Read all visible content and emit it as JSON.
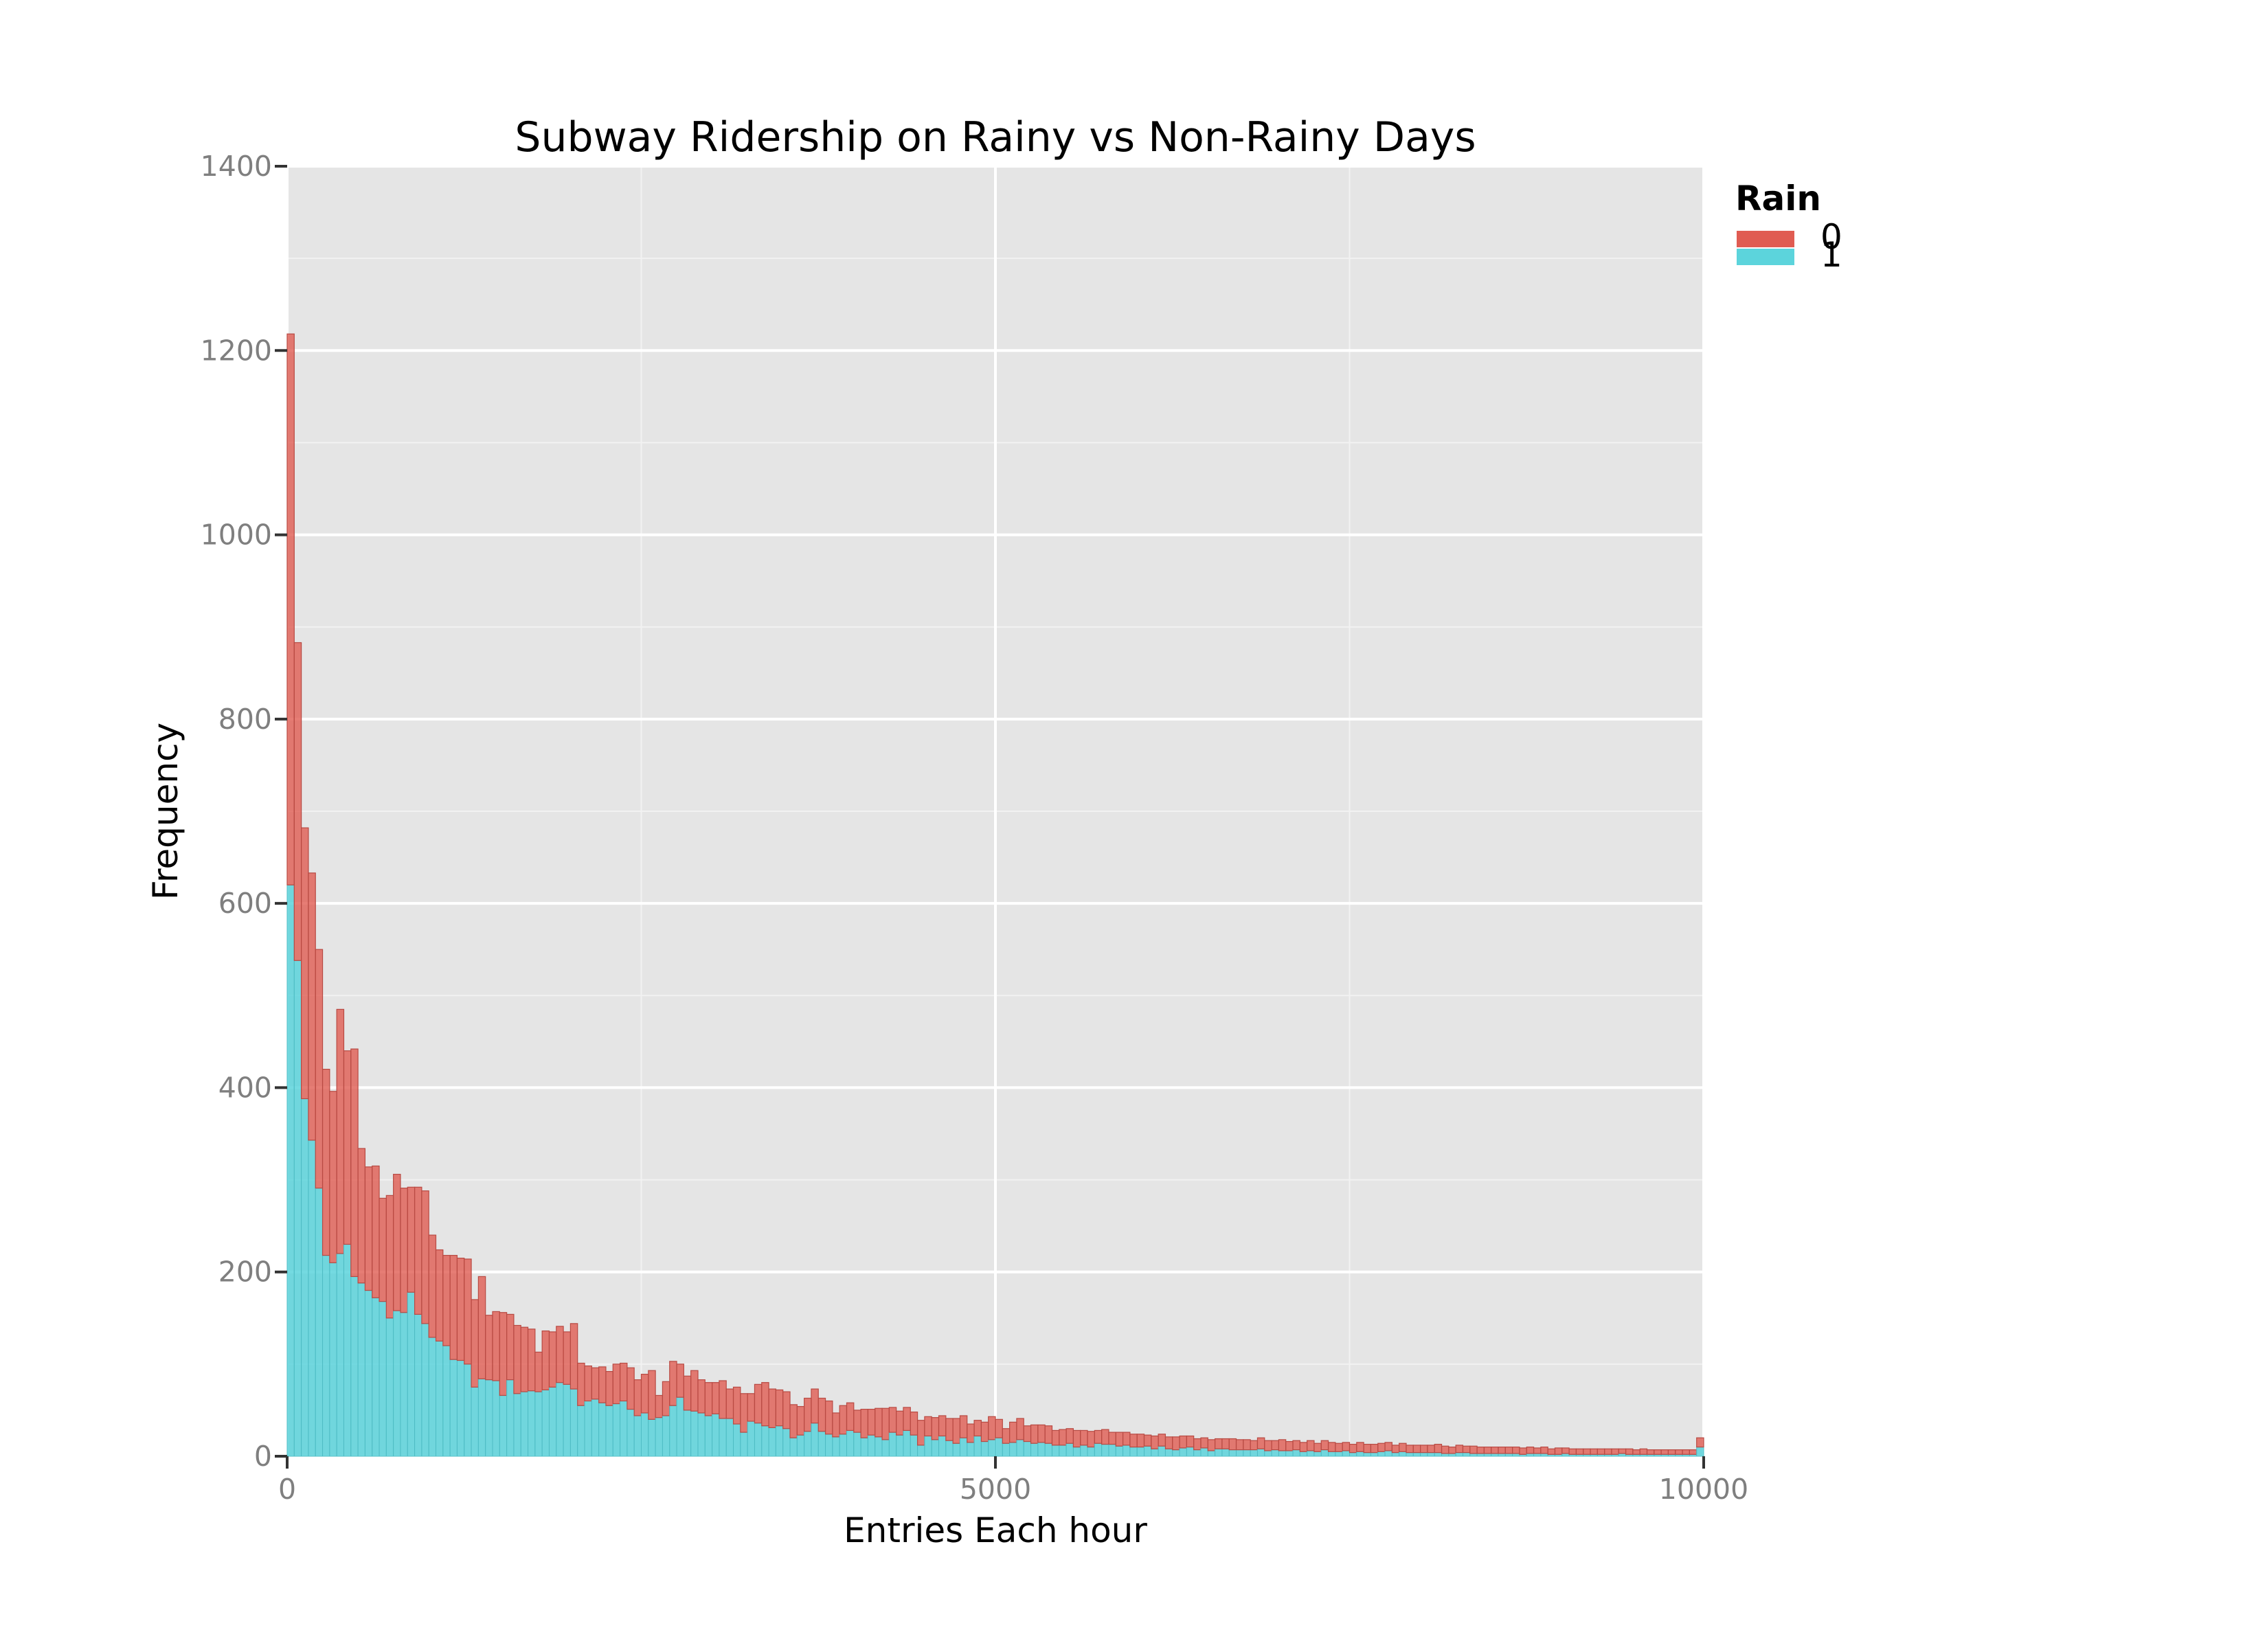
{
  "chart_data": {
    "type": "bar",
    "stacked": true,
    "title": "Subway Ridership on Rainy vs Non-Rainy Days",
    "xlabel": "Entries Each hour",
    "ylabel": "Frequency",
    "xlim": [
      0,
      10000
    ],
    "ylim": [
      0,
      1400
    ],
    "xticks": [
      0,
      5000,
      10000
    ],
    "yticks": [
      0,
      200,
      400,
      600,
      800,
      1000,
      1200,
      1400
    ],
    "bin_width": 50,
    "grid": true,
    "legend": {
      "title": "Rain",
      "position": "right",
      "entries": [
        {
          "label": "0",
          "color": "#e05c52"
        },
        {
          "label": "1",
          "color": "#5cd4dc"
        }
      ]
    },
    "series": [
      {
        "name": "1",
        "color": "#5cd4dc",
        "note": "rainy-day counts, bottom layer",
        "values": [
          620,
          538,
          388,
          343,
          291,
          218,
          210,
          220,
          230,
          195,
          188,
          180,
          172,
          168,
          150,
          158,
          156,
          178,
          154,
          144,
          129,
          125,
          120,
          105,
          104,
          100,
          75,
          84,
          83,
          82,
          66,
          83,
          68,
          70,
          71,
          70,
          72,
          75,
          80,
          78,
          73,
          55,
          60,
          62,
          58,
          55,
          57,
          60,
          51,
          44,
          47,
          40,
          42,
          44,
          55,
          64,
          50,
          49,
          47,
          44,
          46,
          41,
          41,
          35,
          26,
          38,
          36,
          33,
          31,
          33,
          30,
          20,
          23,
          27,
          36,
          27,
          24,
          21,
          24,
          28,
          26,
          20,
          23,
          21,
          18,
          26,
          23,
          28,
          23,
          12,
          22,
          18,
          22,
          17,
          14,
          20,
          15,
          22,
          16,
          18,
          20,
          14,
          15,
          18,
          16,
          14,
          15,
          14,
          12,
          12,
          14,
          10,
          12,
          10,
          14,
          13,
          13,
          11,
          12,
          10,
          10,
          11,
          8,
          11,
          8,
          7,
          9,
          10,
          7,
          9,
          6,
          8,
          8,
          7,
          7,
          7,
          7,
          8,
          6,
          7,
          6,
          6,
          7,
          5,
          6,
          5,
          7,
          5,
          5,
          6,
          4,
          5,
          4,
          4,
          5,
          6,
          4,
          5,
          4,
          4,
          4,
          4,
          4,
          3,
          3,
          4,
          4,
          3,
          3,
          3,
          3,
          3,
          3,
          3,
          2,
          3,
          3,
          3,
          2,
          2,
          3,
          2,
          2,
          2,
          2,
          2,
          2,
          2,
          3,
          2,
          2,
          2,
          2,
          2,
          2,
          2,
          2,
          2,
          2,
          10
        ]
      },
      {
        "name": "0",
        "color": "#e05c52",
        "note": "non-rainy-day counts, stacked on top",
        "values": [
          598,
          345,
          294,
          290,
          259,
          202,
          186,
          265,
          210,
          247,
          146,
          134,
          143,
          112,
          133,
          148,
          135,
          114,
          138,
          144,
          111,
          99,
          98,
          113,
          111,
          114,
          95,
          111,
          70,
          75,
          90,
          71,
          74,
          70,
          67,
          43,
          64,
          60,
          61,
          57,
          71,
          46,
          38,
          34,
          39,
          37,
          43,
          41,
          45,
          39,
          42,
          53,
          24,
          37,
          48,
          36,
          37,
          44,
          36,
          36,
          34,
          41,
          32,
          40,
          42,
          30,
          42,
          47,
          42,
          39,
          40,
          36,
          31,
          36,
          37,
          36,
          36,
          26,
          31,
          30,
          24,
          31,
          28,
          31,
          34,
          27,
          26,
          25,
          25,
          27,
          21,
          24,
          22,
          24,
          27,
          24,
          20,
          17,
          21,
          25,
          20,
          16,
          22,
          23,
          17,
          20,
          19,
          19,
          16,
          17,
          16,
          18,
          16,
          17,
          14,
          16,
          13,
          15,
          14,
          14,
          14,
          12,
          14,
          13,
          13,
          14,
          13,
          12,
          12,
          11,
          12,
          11,
          11,
          12,
          11,
          11,
          10,
          12,
          11,
          10,
          12,
          10,
          10,
          10,
          11,
          9,
          10,
          10,
          9,
          9,
          9,
          10,
          9,
          9,
          9,
          9,
          8,
          9,
          8,
          8,
          8,
          8,
          9,
          8,
          7,
          8,
          7,
          8,
          7,
          7,
          7,
          7,
          7,
          7,
          7,
          7,
          6,
          7,
          6,
          7,
          6,
          6,
          6,
          6,
          6,
          6,
          6,
          6,
          5,
          6,
          5,
          6,
          5,
          5,
          5,
          5,
          5,
          5,
          5,
          10
        ]
      }
    ]
  }
}
